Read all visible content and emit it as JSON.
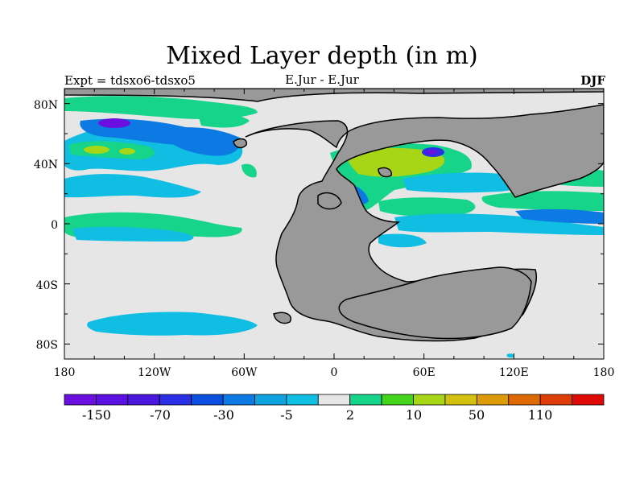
{
  "title": "Mixed Layer depth (in m)",
  "subtitle_left": "Expt = tdsxo6-tdsxo5",
  "subtitle_center": "E.Jur - E.Jur",
  "subtitle_right": "DJF",
  "x_ticks": [
    "180",
    "120W",
    "60W",
    "0",
    "60E",
    "120E",
    "180"
  ],
  "y_ticks": [
    "80N",
    "40N",
    "0",
    "40S",
    "80S"
  ],
  "colorbar": {
    "colors": [
      "#6a0fe0",
      "#5a10e0",
      "#4a18dc",
      "#2b2fe6",
      "#0b4fe0",
      "#0d79e3",
      "#0fa2e0",
      "#10bde3",
      "#e6e6e6",
      "#16d48a",
      "#44d41c",
      "#a6d615",
      "#d2c10f",
      "#de9b08",
      "#de6a06",
      "#de3c08",
      "#de0a06"
    ],
    "labels": [
      "-150",
      "-70",
      "-30",
      "-5",
      "2",
      "10",
      "50",
      "110"
    ]
  },
  "palette": {
    "ocean_neutral": "#e6e6e6",
    "land": "#999999",
    "light_blue": "#10bde3",
    "blue": "#0d79e3",
    "green": "#16d48a",
    "yellow_green": "#a6d615",
    "purple": "#6a0fe0"
  }
}
